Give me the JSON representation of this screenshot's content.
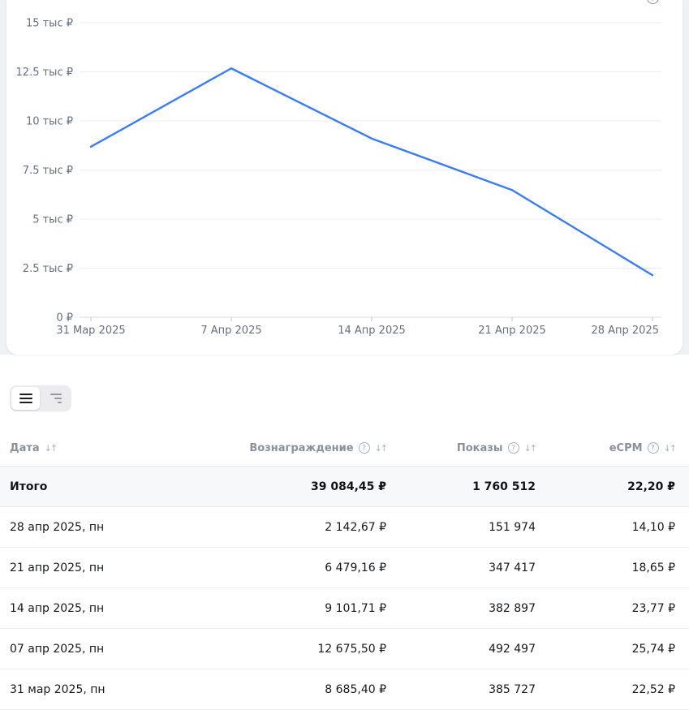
{
  "chart_data": {
    "type": "line",
    "title": "",
    "xlabel": "",
    "ylabel": "",
    "x": [
      "31 Мар 2025",
      "7 Апр 2025",
      "14 Апр 2025",
      "21 Апр 2025",
      "28 Апр 2025"
    ],
    "series": [
      {
        "name": "Вознаграждение",
        "values": [
          8685.4,
          12675.5,
          9101.71,
          6479.16,
          2142.67
        ]
      }
    ],
    "y_ticks": [
      {
        "label": "0 ₽",
        "value": 0
      },
      {
        "label": "2.5 тыс ₽",
        "value": 2500
      },
      {
        "label": "5 тыс ₽",
        "value": 5000
      },
      {
        "label": "7.5 тыс ₽",
        "value": 7500
      },
      {
        "label": "10 тыс ₽",
        "value": 10000
      },
      {
        "label": "12.5 тыс ₽",
        "value": 12500
      },
      {
        "label": "15 тыс ₽",
        "value": 15000
      }
    ],
    "ylim": [
      0,
      15000
    ],
    "line_color": "#3B7DF2",
    "grid": true,
    "legend": false
  },
  "card": {
    "clipped_help_icon": "?"
  },
  "view_toggle": {
    "options": [
      {
        "key": "list-view",
        "active": true
      },
      {
        "key": "summary-view",
        "active": false
      }
    ]
  },
  "table": {
    "sort_icon": "↓↑",
    "help_icon": "?",
    "columns": [
      {
        "key": "date",
        "label": "Дата",
        "has_help": false,
        "has_sort": true,
        "align": "left"
      },
      {
        "key": "reward",
        "label": "Вознаграждение",
        "has_help": true,
        "has_sort": true,
        "align": "right"
      },
      {
        "key": "impressions",
        "label": "Показы",
        "has_help": true,
        "has_sort": true,
        "align": "right"
      },
      {
        "key": "ecpm",
        "label": "eCPM",
        "has_help": true,
        "has_sort": true,
        "align": "right"
      }
    ],
    "totals": {
      "label": "Итого",
      "reward": "39 084,45 ₽",
      "impressions": "1 760 512",
      "ecpm": "22,20 ₽"
    },
    "rows": [
      {
        "date": "28 апр 2025, пн",
        "reward": "2 142,67 ₽",
        "impressions": "151 974",
        "ecpm": "14,10 ₽"
      },
      {
        "date": "21 апр 2025, пн",
        "reward": "6 479,16 ₽",
        "impressions": "347 417",
        "ecpm": "18,65 ₽"
      },
      {
        "date": "14 апр 2025, пн",
        "reward": "9 101,71 ₽",
        "impressions": "382 897",
        "ecpm": "23,77 ₽"
      },
      {
        "date": "07 апр 2025, пн",
        "reward": "12 675,50 ₽",
        "impressions": "492 497",
        "ecpm": "25,74 ₽"
      },
      {
        "date": "31 мар 2025, пн",
        "reward": "8 685,40 ₽",
        "impressions": "385 727",
        "ecpm": "22,52 ₽"
      }
    ]
  }
}
